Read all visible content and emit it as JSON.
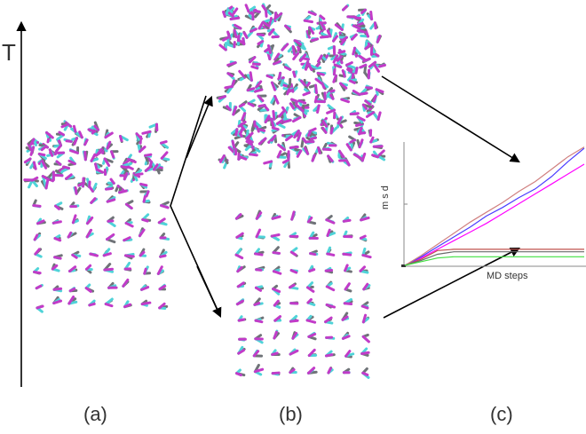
{
  "temperature_axis": {
    "label": "T"
  },
  "panel_labels": {
    "a": "(a)",
    "b": "(b)",
    "c": "(c)"
  },
  "msd_plot": {
    "ylabel": "m s d",
    "xlabel": "MD steps"
  },
  "colors": {
    "molecule_gray": "#6f7378",
    "molecule_cyan": "#4fd3d8",
    "molecule_magenta": "#c23bc8",
    "arrow": "#000000"
  },
  "chart_data": {
    "type": "line",
    "xlabel": "MD steps",
    "ylabel": "m s d",
    "series": [
      {
        "color": "#ff00ff",
        "values": [
          0,
          0.06,
          0.13,
          0.2,
          0.27,
          0.34,
          0.42,
          0.5,
          0.58,
          0.66,
          0.74,
          0.82
        ]
      },
      {
        "color": "#4b3cff",
        "values": [
          0,
          0.07,
          0.15,
          0.23,
          0.31,
          0.4,
          0.47,
          0.55,
          0.62,
          0.72,
          0.84,
          0.95
        ]
      },
      {
        "color": "#d08080",
        "values": [
          0,
          0.08,
          0.17,
          0.26,
          0.35,
          0.43,
          0.51,
          0.6,
          0.68,
          0.78,
          0.88,
          0.96
        ]
      },
      {
        "color": "#c0504d",
        "values": [
          0,
          0.05,
          0.12,
          0.13,
          0.13,
          0.13,
          0.13,
          0.13,
          0.13,
          0.13,
          0.13,
          0.13
        ]
      },
      {
        "color": "#6a6a6a",
        "values": [
          0,
          0.04,
          0.09,
          0.11,
          0.11,
          0.11,
          0.11,
          0.11,
          0.11,
          0.11,
          0.11,
          0.11
        ]
      },
      {
        "color": "#40e040",
        "values": [
          0,
          0.03,
          0.06,
          0.07,
          0.07,
          0.07,
          0.07,
          0.07,
          0.07,
          0.07,
          0.07,
          0.07
        ]
      }
    ]
  }
}
